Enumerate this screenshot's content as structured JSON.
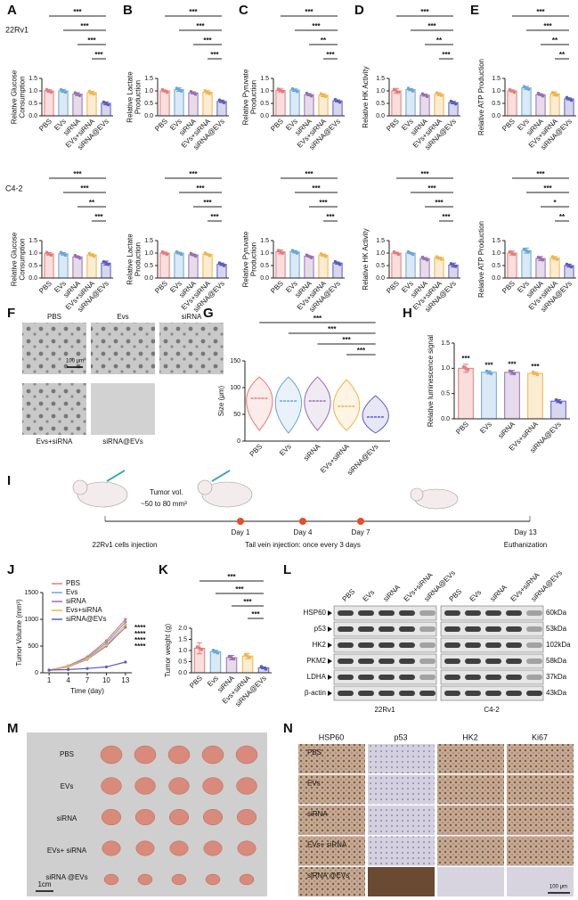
{
  "panel_labels": [
    "A",
    "B",
    "C",
    "D",
    "E",
    "F",
    "G",
    "H",
    "I",
    "J",
    "K",
    "L",
    "M",
    "N"
  ],
  "cell_lines": [
    "22Rv1",
    "C4-2"
  ],
  "chart_data": [
    {
      "type": "bar",
      "ylabel": [
        "Relative Glucose",
        "Consumption"
      ],
      "categories": [
        "PBS",
        "EVs",
        "siRNA",
        "EVs+siRNA",
        "siRNA@EVs"
      ],
      "colors": [
        "#e87a7a",
        "#6aa6d8",
        "#9a6fb0",
        "#f0b54a",
        "#5c5cc0"
      ],
      "values": [
        1.0,
        1.0,
        0.87,
        0.93,
        0.5
      ],
      "errors": [
        0.05,
        0.06,
        0.06,
        0.05,
        0.06
      ],
      "ylim": [
        0,
        1.5
      ],
      "yticks": [
        {
          "value": 0,
          "label": "0.0"
        },
        0.5,
        {
          "value": 1,
          "label": "1.0"
        },
        1.5
      ],
      "significance": [
        {
          "label": "***",
          "groups": [
            0,
            4
          ]
        },
        {
          "label": "***",
          "groups": [
            1,
            4
          ]
        },
        {
          "label": "***",
          "groups": [
            2,
            4
          ]
        },
        {
          "label": "***",
          "groups": [
            3,
            4
          ]
        }
      ]
    },
    {
      "type": "bar",
      "ylabel": [
        "Relative Lactate",
        "Production"
      ],
      "categories": [
        "PBS",
        "EVs",
        "siRNA",
        "EVs+siRNA",
        "siRNA@EVs"
      ],
      "colors": [
        "#e87a7a",
        "#6aa6d8",
        "#9a6fb0",
        "#f0b54a",
        "#5c5cc0"
      ],
      "values": [
        1.0,
        1.05,
        0.92,
        0.95,
        0.58
      ],
      "errors": [
        0.03,
        0.07,
        0.04,
        0.06,
        0.05
      ],
      "ylim": [
        0,
        1.5
      ],
      "yticks": [
        {
          "value": 0,
          "label": "0.0"
        },
        0.5,
        {
          "value": 1,
          "label": "1.0"
        },
        1.5
      ],
      "significance": [
        {
          "label": "***",
          "groups": [
            0,
            4
          ]
        },
        {
          "label": "***",
          "groups": [
            1,
            4
          ]
        },
        {
          "label": "***",
          "groups": [
            2,
            4
          ]
        },
        {
          "label": "***",
          "groups": [
            3,
            4
          ]
        }
      ]
    },
    {
      "type": "bar",
      "ylabel": [
        "Relative Pyruvate",
        "Production"
      ],
      "categories": [
        "PBS",
        "EVs",
        "siRNA",
        "EVs+siRNA",
        "siRNA@EVs"
      ],
      "colors": [
        "#e87a7a",
        "#6aa6d8",
        "#9a6fb0",
        "#f0b54a",
        "#5c5cc0"
      ],
      "values": [
        1.02,
        1.03,
        0.85,
        0.83,
        0.6
      ],
      "errors": [
        0.06,
        0.05,
        0.04,
        0.06,
        0.04
      ],
      "ylim": [
        0,
        1.5
      ],
      "yticks": [
        {
          "value": 0,
          "label": "0.0"
        },
        0.5,
        {
          "value": 1,
          "label": "1.0"
        },
        1.5
      ],
      "significance": [
        {
          "label": "***",
          "groups": [
            0,
            4
          ]
        },
        {
          "label": "***",
          "groups": [
            1,
            4
          ]
        },
        {
          "label": "**",
          "groups": [
            2,
            4
          ]
        },
        {
          "label": "***",
          "groups": [
            3,
            4
          ]
        }
      ]
    },
    {
      "type": "bar",
      "ylabel": [
        "Relative HK Activity"
      ],
      "categories": [
        "PBS",
        "EVs",
        "siRNA",
        "EVs+siRNA",
        "siRNA@EVs"
      ],
      "colors": [
        "#e87a7a",
        "#6aa6d8",
        "#9a6fb0",
        "#f0b54a",
        "#5c5cc0"
      ],
      "values": [
        1.0,
        1.05,
        0.83,
        0.87,
        0.53
      ],
      "errors": [
        0.1,
        0.04,
        0.04,
        0.06,
        0.05
      ],
      "ylim": [
        0,
        1.5
      ],
      "yticks": [
        {
          "value": 0,
          "label": "0.0"
        },
        0.5,
        {
          "value": 1,
          "label": "1.0"
        },
        1.5
      ],
      "significance": [
        {
          "label": "***",
          "groups": [
            0,
            4
          ]
        },
        {
          "label": "***",
          "groups": [
            1,
            4
          ]
        },
        {
          "label": "**",
          "groups": [
            2,
            4
          ]
        },
        {
          "label": "***",
          "groups": [
            3,
            4
          ]
        }
      ]
    },
    {
      "type": "bar",
      "ylabel": [
        "Relative ATP Production"
      ],
      "categories": [
        "PBS",
        "EVs",
        "siRNA",
        "EVs+siRNA",
        "siRNA@EVs"
      ],
      "colors": [
        "#e87a7a",
        "#6aa6d8",
        "#9a6fb0",
        "#f0b54a",
        "#5c5cc0"
      ],
      "values": [
        1.0,
        1.12,
        0.85,
        0.88,
        0.68
      ],
      "errors": [
        0.04,
        0.06,
        0.03,
        0.08,
        0.04
      ],
      "ylim": [
        0,
        1.5
      ],
      "yticks": [
        {
          "value": 0,
          "label": "0.0"
        },
        0.5,
        {
          "value": 1,
          "label": "1.0"
        },
        1.5
      ],
      "significance": [
        {
          "label": "***",
          "groups": [
            0,
            4
          ]
        },
        {
          "label": "***",
          "groups": [
            1,
            4
          ]
        },
        {
          "label": "**",
          "groups": [
            2,
            4
          ]
        },
        {
          "label": "**",
          "groups": [
            3,
            4
          ]
        }
      ]
    },
    {
      "type": "bar",
      "ylabel": [
        "Relative Glucose",
        "Consumption"
      ],
      "categories": [
        "PBS",
        "EVs",
        "siRNA",
        "EVs+siRNA",
        "siRNA@EVs"
      ],
      "colors": [
        "#e87a7a",
        "#6aa6d8",
        "#9a6fb0",
        "#f0b54a",
        "#5c5cc0"
      ],
      "values": [
        0.97,
        0.97,
        0.85,
        0.93,
        0.6
      ],
      "errors": [
        0.05,
        0.05,
        0.03,
        0.04,
        0.08
      ],
      "ylim": [
        0,
        1.5
      ],
      "yticks": [
        {
          "value": 0,
          "label": "0.0"
        },
        0.5,
        {
          "value": 1,
          "label": "1.0"
        },
        1.5
      ],
      "significance": [
        {
          "label": "***",
          "groups": [
            0,
            4
          ]
        },
        {
          "label": "***",
          "groups": [
            1,
            4
          ]
        },
        {
          "label": "**",
          "groups": [
            2,
            4
          ]
        },
        {
          "label": "***",
          "groups": [
            3,
            4
          ]
        }
      ]
    },
    {
      "type": "bar",
      "ylabel": [
        "Relative Lactate",
        "Production"
      ],
      "categories": [
        "PBS",
        "EVs",
        "siRNA",
        "EVs+siRNA",
        "siRNA@EVs"
      ],
      "colors": [
        "#e87a7a",
        "#6aa6d8",
        "#9a6fb0",
        "#f0b54a",
        "#5c5cc0"
      ],
      "values": [
        1.0,
        1.0,
        0.93,
        0.95,
        0.55
      ],
      "errors": [
        0.04,
        0.03,
        0.03,
        0.02,
        0.05
      ],
      "ylim": [
        0,
        1.5
      ],
      "yticks": [
        {
          "value": 0,
          "label": "0.0"
        },
        0.5,
        {
          "value": 1,
          "label": "1.0"
        },
        1.5
      ],
      "significance": [
        {
          "label": "***",
          "groups": [
            0,
            4
          ]
        },
        {
          "label": "***",
          "groups": [
            1,
            4
          ]
        },
        {
          "label": "***",
          "groups": [
            2,
            4
          ]
        },
        {
          "label": "***",
          "groups": [
            3,
            4
          ]
        }
      ]
    },
    {
      "type": "bar",
      "ylabel": [
        "Relative Pyruvate",
        "Production"
      ],
      "categories": [
        "PBS",
        "EVs",
        "siRNA",
        "EVs+siRNA",
        "siRNA@EVs"
      ],
      "colors": [
        "#e87a7a",
        "#6aa6d8",
        "#9a6fb0",
        "#f0b54a",
        "#5c5cc0"
      ],
      "values": [
        1.05,
        1.05,
        0.87,
        0.92,
        0.6
      ],
      "errors": [
        0.08,
        0.05,
        0.02,
        0.04,
        0.04
      ],
      "ylim": [
        0,
        1.5
      ],
      "yticks": [
        {
          "value": 0,
          "label": "0.0"
        },
        0.5,
        {
          "value": 1,
          "label": "1.0"
        },
        1.5
      ],
      "significance": [
        {
          "label": "***",
          "groups": [
            0,
            4
          ]
        },
        {
          "label": "***",
          "groups": [
            1,
            4
          ]
        },
        {
          "label": "***",
          "groups": [
            2,
            4
          ]
        },
        {
          "label": "***",
          "groups": [
            3,
            4
          ]
        }
      ]
    },
    {
      "type": "bar",
      "ylabel": [
        "Relative HK Activity"
      ],
      "categories": [
        "PBS",
        "EVs",
        "siRNA",
        "EVs+siRNA",
        "siRNA@EVs"
      ],
      "colors": [
        "#e87a7a",
        "#6aa6d8",
        "#9a6fb0",
        "#f0b54a",
        "#5c5cc0"
      ],
      "values": [
        1.0,
        1.0,
        0.78,
        0.8,
        0.52
      ],
      "errors": [
        0.03,
        0.02,
        0.04,
        0.04,
        0.08
      ],
      "ylim": [
        0,
        1.5
      ],
      "yticks": [
        {
          "value": 0,
          "label": "0.0"
        },
        0.5,
        {
          "value": 1,
          "label": "1.0"
        },
        1.5
      ],
      "significance": [
        {
          "label": "***",
          "groups": [
            0,
            4
          ]
        },
        {
          "label": "***",
          "groups": [
            1,
            4
          ]
        },
        {
          "label": "***",
          "groups": [
            2,
            4
          ]
        },
        {
          "label": "***",
          "groups": [
            3,
            4
          ]
        }
      ]
    },
    {
      "type": "bar",
      "ylabel": [
        "Relative ATP Production"
      ],
      "categories": [
        "PBS",
        "EVs",
        "siRNA",
        "EVs+siRNA",
        "siRNA@EVs"
      ],
      "colors": [
        "#e87a7a",
        "#6aa6d8",
        "#9a6fb0",
        "#f0b54a",
        "#5c5cc0"
      ],
      "values": [
        1.0,
        1.1,
        0.78,
        0.8,
        0.5
      ],
      "errors": [
        0.08,
        0.1,
        0.08,
        0.06,
        0.06
      ],
      "ylim": [
        0,
        1.5
      ],
      "yticks": [
        {
          "value": 0,
          "label": "0.0"
        },
        0.5,
        {
          "value": 1,
          "label": "1.0"
        },
        1.5
      ],
      "significance": [
        {
          "label": "***",
          "groups": [
            0,
            4
          ]
        },
        {
          "label": "***",
          "groups": [
            1,
            4
          ]
        },
        {
          "label": "*",
          "groups": [
            2,
            4
          ]
        },
        {
          "label": "**",
          "groups": [
            3,
            4
          ]
        }
      ]
    },
    {
      "type": "violin",
      "ylabel": [
        "Size (μm)"
      ],
      "categories": [
        "PBS",
        "EVs",
        "siRNA",
        "EVs+siRNA",
        "siRNA@EVs"
      ],
      "colors": [
        "#e87a7a",
        "#6aa6d8",
        "#9a6fb0",
        "#f0b54a",
        "#5c5cc0"
      ],
      "values": [
        80,
        75,
        75,
        65,
        45
      ],
      "ranges": [
        [
          20,
          120
        ],
        [
          15,
          120
        ],
        [
          20,
          120
        ],
        [
          20,
          115
        ],
        [
          15,
          85
        ]
      ],
      "ylim": [
        0,
        150
      ],
      "yticks": [
        0,
        50,
        100,
        150
      ],
      "significance": [
        {
          "label": "***",
          "groups": [
            0,
            4
          ]
        },
        {
          "label": "***",
          "groups": [
            1,
            4
          ]
        },
        {
          "label": "***",
          "groups": [
            2,
            4
          ]
        },
        {
          "label": "***",
          "groups": [
            3,
            4
          ]
        }
      ]
    },
    {
      "type": "bar",
      "ylabel": [
        "Relative luminescence signal"
      ],
      "categories": [
        "PBS",
        "EVs",
        "siRNA",
        "EVs+siRNA",
        "siRNA@EVs"
      ],
      "colors": [
        "#e87a7a",
        "#6aa6d8",
        "#9a6fb0",
        "#f0b54a",
        "#5c5cc0"
      ],
      "values": [
        1.0,
        0.92,
        0.92,
        0.9,
        0.35
      ],
      "errors": [
        0.08,
        0.03,
        0.04,
        0.02,
        0.03
      ],
      "ylim": [
        0,
        1.5
      ],
      "yticks": [
        {
          "value": 0,
          "label": "0.0"
        },
        0.5,
        {
          "value": 1,
          "label": "1.0"
        },
        1.5
      ],
      "annotations": [
        {
          "label": "***",
          "category": 0
        },
        {
          "label": "***",
          "category": 1
        },
        {
          "label": "***",
          "category": 2
        },
        {
          "label": "***",
          "category": 3
        }
      ]
    },
    {
      "type": "line",
      "ylabel": [
        "Tumor Volume (mm³)"
      ],
      "xlabel": "Time (day)",
      "x": [
        1,
        4,
        7,
        10,
        13
      ],
      "xlim": [
        0,
        14
      ],
      "xticks": [
        1,
        4,
        7,
        10,
        13
      ],
      "ylim": [
        0,
        1500
      ],
      "yticks": [
        0,
        500,
        1000,
        1500
      ],
      "series": [
        {
          "name": "PBS",
          "color": "#e87a7a",
          "values": [
            50,
            130,
            300,
            600,
            1000
          ]
        },
        {
          "name": "Evs",
          "color": "#6aa6d8",
          "values": [
            50,
            120,
            280,
            560,
            950
          ]
        },
        {
          "name": "siRNA",
          "color": "#9a6fb0",
          "values": [
            50,
            110,
            250,
            500,
            850
          ]
        },
        {
          "name": "Evs+siRNA",
          "color": "#f0b54a",
          "values": [
            50,
            115,
            260,
            520,
            900
          ]
        },
        {
          "name": "siRNA@EVs",
          "color": "#5c5cc0",
          "values": [
            50,
            60,
            80,
            110,
            200
          ]
        }
      ],
      "annotations": [
        "****",
        "****",
        "****",
        "****"
      ]
    },
    {
      "type": "bar",
      "ylabel": [
        "Tumor weight (g)"
      ],
      "categories": [
        "PBS",
        "Evs",
        "siRNA",
        "Evs+siRNA",
        "siRNA@EVs"
      ],
      "colors": [
        "#e87a7a",
        "#6aa6d8",
        "#9a6fb0",
        "#f0b54a",
        "#5c5cc0"
      ],
      "values": [
        1.1,
        0.95,
        0.68,
        0.75,
        0.22
      ],
      "errors": [
        0.25,
        0.06,
        0.1,
        0.12,
        0.04
      ],
      "ylim": [
        0,
        2
      ],
      "yticks": [
        {
          "value": 0,
          "label": "0.0"
        },
        0.5,
        {
          "value": 1,
          "label": "1.0"
        },
        1.5,
        {
          "value": 2,
          "label": "2.0"
        }
      ],
      "significance": [
        {
          "label": "***",
          "groups": [
            0,
            4
          ]
        },
        {
          "label": "***",
          "groups": [
            1,
            4
          ]
        },
        {
          "label": "***",
          "groups": [
            2,
            4
          ]
        },
        {
          "label": "***",
          "groups": [
            3,
            4
          ]
        }
      ]
    }
  ],
  "F": {
    "labels": [
      "PBS",
      "Evs",
      "siRNA",
      "Evs+siRNA",
      "siRNA@EVs"
    ],
    "scale_bar": "100 μm"
  },
  "I": {
    "tumor_vol": "Tumor vol.",
    "tumor_range": "~50 to 80 mm³",
    "days": [
      "Day 1",
      "Day 4",
      "Day 7",
      "Day 13"
    ],
    "steps": [
      "22Rv1 cells injection",
      "Tail vein injection: once every 3 days",
      "Euthanization"
    ]
  },
  "L": {
    "lanes": [
      "PBS",
      "EVs",
      "siRNA",
      "EVs+siRNA",
      "siRNA@EVs"
    ],
    "proteins": [
      "HSP60",
      "p53",
      "HK2",
      "PKM2",
      "LDHA",
      "β-actin"
    ],
    "sizes": [
      "60kDa",
      "53kDa",
      "102kDa",
      "58kDa",
      "37kDa",
      "43kDa"
    ]
  },
  "M": {
    "rows": [
      "PBS",
      "EVs",
      "siRNA",
      "EVs+ siRNA",
      "siRNA @EVs"
    ],
    "scale_bar": "1cm"
  },
  "N": {
    "columns": [
      "HSP60",
      "p53",
      "HK2",
      "Ki67"
    ],
    "rows": [
      "PBS",
      "EVs",
      "siRNA",
      "EVs+ siRNA",
      "siRNA @EVs"
    ],
    "scale_bar": "100 μm"
  }
}
